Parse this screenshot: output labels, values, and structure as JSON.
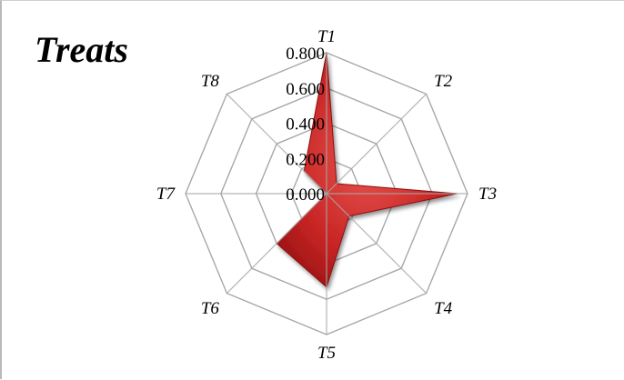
{
  "chart_data": {
    "type": "radar",
    "title": "Treats",
    "categories": [
      "T1",
      "T2",
      "T3",
      "T4",
      "T5",
      "T6",
      "T7",
      "T8"
    ],
    "series": [
      {
        "values": [
          0.8,
          0.08,
          0.74,
          0.18,
          0.53,
          0.4,
          0.0,
          0.18
        ]
      }
    ],
    "rmin": 0,
    "rmax": 0.8,
    "ticks": [
      "0.000",
      "0.200",
      "0.400",
      "0.600",
      "0.800"
    ],
    "tick_values": [
      0,
      0.2,
      0.4,
      0.6,
      0.8
    ],
    "grid": true,
    "legend": "none",
    "colors": {
      "fill_light": "#e8554f",
      "fill_mid": "#c72424",
      "fill_dark": "#8c0f0f",
      "grid": "#a8a8a8"
    }
  }
}
